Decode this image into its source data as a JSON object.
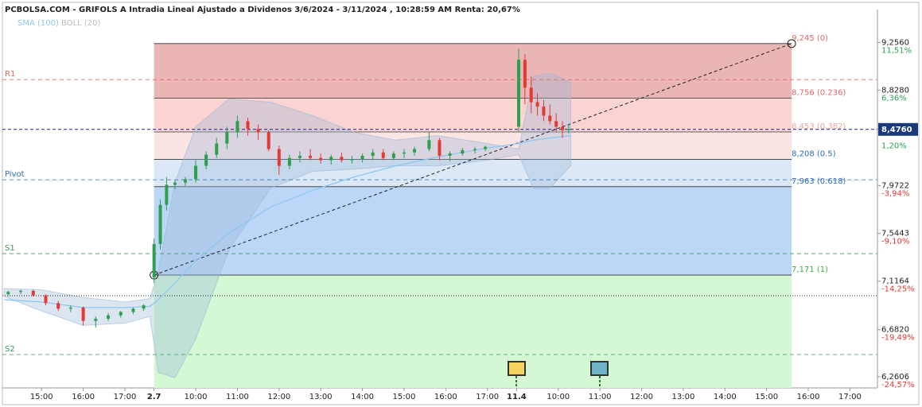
{
  "chart_data": {
    "type": "candlestick",
    "title": "PCBOLSA.COM - GRIFOLS A Intradia Lineal Ajustado a Dividenos 3/6/2024 - 3/11/2024 , 10:28:59 AM Renta: 20,67%",
    "x": [
      -0.8,
      -0.5,
      -0.2,
      0.1,
      0.4,
      0.7,
      1.0,
      1.3,
      1.6,
      1.9,
      2.2,
      2.45,
      2.7,
      2.85,
      3.0,
      3.2,
      3.45,
      3.7,
      3.95,
      4.2,
      4.45,
      4.7,
      4.95,
      5.2,
      5.45,
      5.7,
      5.95,
      6.2,
      6.45,
      6.7,
      6.95,
      7.2,
      7.45,
      7.7,
      7.95,
      8.2,
      8.45,
      8.7,
      8.95,
      9.3,
      9.55,
      9.8,
      10.1,
      10.4,
      10.65,
      11.45,
      11.6,
      11.75,
      11.9,
      12.05,
      12.2,
      12.35,
      12.5,
      12.65
    ],
    "open": [
      7.0,
      7.02,
      7.03,
      6.99,
      6.92,
      6.87,
      6.88,
      6.76,
      6.78,
      6.81,
      6.84,
      6.87,
      7.15,
      7.45,
      7.8,
      7.98,
      8.0,
      8.03,
      8.15,
      8.25,
      8.35,
      8.45,
      8.55,
      8.48,
      8.45,
      8.3,
      8.15,
      8.22,
      8.24,
      8.22,
      8.2,
      8.23,
      8.2,
      8.21,
      8.24,
      8.27,
      8.22,
      8.26,
      8.27,
      8.3,
      8.38,
      8.24,
      8.26,
      8.29,
      8.3,
      8.5,
      9.1,
      8.85,
      8.72,
      8.68,
      8.6,
      8.55,
      8.5,
      8.47
    ],
    "high": [
      7.03,
      7.04,
      7.04,
      7.0,
      6.94,
      6.9,
      6.89,
      6.8,
      6.83,
      6.85,
      6.88,
      6.91,
      7.5,
      7.85,
      8.05,
      8.02,
      8.05,
      8.2,
      8.28,
      8.4,
      8.5,
      8.6,
      8.58,
      8.52,
      8.47,
      8.33,
      8.25,
      8.28,
      8.3,
      8.26,
      8.25,
      8.27,
      8.24,
      8.26,
      8.3,
      8.3,
      8.28,
      8.3,
      8.32,
      8.45,
      8.4,
      8.28,
      8.31,
      8.32,
      8.33,
      9.2,
      9.15,
      8.95,
      8.8,
      8.74,
      8.7,
      8.62,
      8.55,
      8.52
    ],
    "low": [
      6.99,
      7.0,
      6.98,
      6.9,
      6.85,
      6.84,
      6.72,
      6.7,
      6.76,
      6.79,
      6.82,
      6.85,
      7.1,
      7.4,
      7.75,
      7.94,
      7.97,
      8.0,
      8.12,
      8.22,
      8.3,
      8.4,
      8.42,
      8.38,
      8.28,
      8.07,
      8.12,
      8.18,
      8.2,
      8.17,
      8.16,
      8.18,
      8.17,
      8.18,
      8.2,
      8.2,
      8.2,
      8.22,
      8.24,
      8.28,
      8.2,
      8.19,
      8.24,
      8.26,
      8.28,
      8.45,
      8.7,
      8.62,
      8.6,
      8.55,
      8.52,
      8.45,
      8.4,
      8.44
    ],
    "close": [
      7.02,
      7.03,
      6.99,
      6.92,
      6.87,
      6.88,
      6.76,
      6.78,
      6.81,
      6.84,
      6.87,
      6.9,
      7.45,
      7.8,
      7.98,
      8.0,
      8.03,
      8.15,
      8.25,
      8.35,
      8.45,
      8.55,
      8.48,
      8.45,
      8.3,
      8.15,
      8.22,
      8.24,
      8.22,
      8.2,
      8.23,
      8.2,
      8.21,
      8.24,
      8.27,
      8.22,
      8.26,
      8.27,
      8.3,
      8.38,
      8.24,
      8.26,
      8.29,
      8.3,
      8.32,
      9.1,
      8.85,
      8.72,
      8.68,
      8.6,
      8.55,
      8.5,
      8.47,
      8.48
    ],
    "up_color": "#2e9e4f",
    "down_color": "#e53935",
    "series": [
      {
        "name": "SMA (100)",
        "color": "#8cc8f0",
        "x": [
          -0.9,
          0,
          1,
          2,
          2.6,
          2.8,
          3.2,
          3.7,
          4.5,
          5.5,
          6.5,
          7.5,
          8.5,
          9.5,
          10.7,
          11.45,
          11.8,
          12.2,
          12.7
        ],
        "values": [
          6.95,
          6.93,
          6.88,
          6.88,
          6.89,
          6.95,
          7.1,
          7.3,
          7.55,
          7.78,
          7.93,
          8.05,
          8.15,
          8.23,
          8.31,
          8.35,
          8.38,
          8.4,
          8.42
        ]
      }
    ],
    "bollinger": {
      "name": "BOLL (20)",
      "color": "#9ab8d8",
      "x": [
        -0.9,
        0,
        1,
        2,
        2.6,
        2.8,
        3.2,
        3.7,
        4.5,
        5.5,
        6.5,
        7.5,
        8.5,
        9.5,
        10.7,
        11.45,
        11.8,
        12.2,
        12.7
      ],
      "upper": [
        7.05,
        7.04,
        6.97,
        6.93,
        6.96,
        7.2,
        8.0,
        8.5,
        8.75,
        8.72,
        8.6,
        8.45,
        8.38,
        8.42,
        8.35,
        8.3,
        8.95,
        8.98,
        8.9
      ],
      "lower": [
        6.98,
        6.85,
        6.72,
        6.74,
        6.8,
        6.3,
        6.25,
        6.6,
        7.4,
        7.95,
        8.1,
        8.12,
        8.15,
        8.15,
        8.2,
        8.25,
        7.95,
        7.95,
        8.15
      ]
    },
    "fib_start": 2.7,
    "fib_end": 18.0,
    "fib_levels": [
      {
        "value": 9.245,
        "label": "9,245 (0)",
        "color": "#e06666",
        "fill": "#e9b5b5"
      },
      {
        "value": 8.756,
        "label": "8,756 (0.236)",
        "color": "#e06666",
        "fill": "#fbd3d3"
      },
      {
        "value": 8.453,
        "label": "8,453 (0.382)",
        "color": "#f0a0a0",
        "fill": "#fbe4e4"
      },
      {
        "value": 8.208,
        "label": "8,208 (0.5)",
        "color": "#2a6ebb",
        "fill": "#dce8f6"
      },
      {
        "value": 7.963,
        "label": "7,963 (0.618)",
        "color": "#2a6ebb",
        "fill": "#bcd6f8"
      },
      {
        "value": 7.171,
        "label": "7,171 (1)",
        "color": "#3cb043",
        "fill": "#d4f7d4"
      }
    ],
    "pivots": [
      {
        "label": "R1",
        "value": 8.922,
        "color": "#e06666"
      },
      {
        "label": "Pivot",
        "value": 8.025,
        "color": "#2a6ebb"
      },
      {
        "label": "S1",
        "value": 7.363,
        "color": "#3a9a5a"
      },
      {
        "label": "S2",
        "value": 6.459,
        "color": "#3a9a5a"
      }
    ],
    "last_price": {
      "value": 8.476,
      "label": "8,4760"
    },
    "prev_close": 6.986,
    "xlim": [
      -0.94,
      20.06
    ],
    "ylim": [
      6.16,
      9.55
    ],
    "xticks": [
      {
        "value": 0,
        "label": "15:00"
      },
      {
        "value": 1,
        "label": "16:00"
      },
      {
        "value": 2,
        "label": "17:00"
      },
      2.7,
      {
        "value": 3.7,
        "label": "10:00"
      },
      {
        "value": 4.7,
        "label": "11:00"
      },
      {
        "value": 5.7,
        "label": "12:00"
      },
      {
        "value": 6.7,
        "label": "13:00"
      },
      {
        "value": 7.7,
        "label": "14:00"
      },
      {
        "value": 8.7,
        "label": "15:00"
      },
      {
        "value": 9.7,
        "label": "16:00"
      },
      {
        "value": 10.7,
        "label": "17:00"
      },
      11.4,
      {
        "value": 12.4,
        "label": "10:00"
      },
      {
        "value": 13.4,
        "label": "11:00"
      },
      {
        "value": 14.4,
        "label": "12:00"
      },
      {
        "value": 15.4,
        "label": "13:00"
      },
      {
        "value": 16.4,
        "label": "14:00"
      },
      {
        "value": 17.4,
        "label": "15:00"
      },
      {
        "value": 18.4,
        "label": "16:00"
      },
      {
        "value": 19.4,
        "label": "17:00"
      }
    ],
    "yticks": [
      {
        "value": 9.256,
        "label": "9,2560"
      },
      {
        "value": 8.828,
        "label": "8,8280"
      },
      {
        "value": 7.9722,
        "label": "7,9722"
      },
      {
        "value": 7.5443,
        "label": "7,5443"
      },
      {
        "value": 7.1164,
        "label": "7,1164"
      },
      {
        "value": 6.682,
        "label": "6,6820"
      },
      {
        "value": 6.2606,
        "label": "6,2606"
      }
    ],
    "y2lim": [
      -25.79,
      15.05
    ],
    "y2ticks": [
      {
        "value": 11.51,
        "label": "11,51%"
      },
      {
        "value": 6.36,
        "label": "6,36%"
      },
      {
        "value": 1.2,
        "label": "1,20%"
      },
      {
        "value": -3.94,
        "label": "-3,94%"
      },
      {
        "value": -9.1,
        "label": "-9,10%"
      },
      {
        "value": -14.25,
        "label": "-14,25%"
      },
      {
        "value": -19.49,
        "label": "-19,49%"
      },
      {
        "value": -24.57,
        "label": "-24,57%"
      }
    ]
  }
}
